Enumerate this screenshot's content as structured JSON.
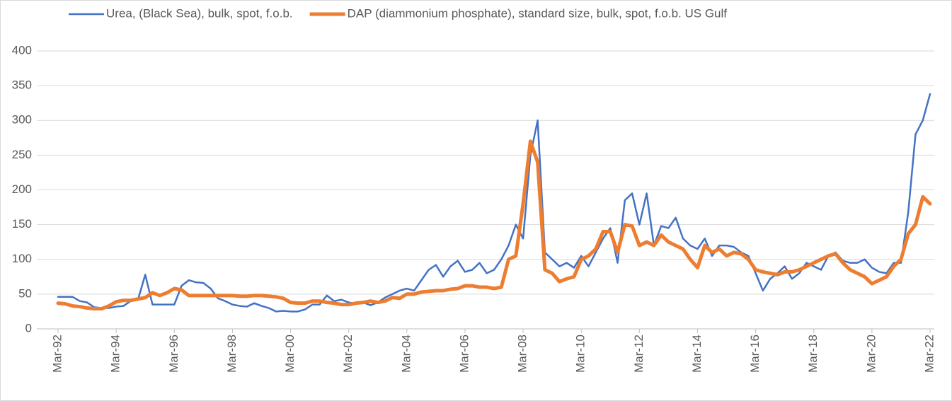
{
  "chart_data": {
    "type": "line",
    "categories": [
      "Mar-92",
      null,
      null,
      null,
      null,
      null,
      null,
      null,
      "Mar-94",
      null,
      null,
      null,
      null,
      null,
      null,
      null,
      "Mar-96",
      null,
      null,
      null,
      null,
      null,
      null,
      null,
      "Mar-98",
      null,
      null,
      null,
      null,
      null,
      null,
      null,
      "Mar-00",
      null,
      null,
      null,
      null,
      null,
      null,
      null,
      "Mar-02",
      null,
      null,
      null,
      null,
      null,
      null,
      null,
      "Mar-04",
      null,
      null,
      null,
      null,
      null,
      null,
      null,
      "Mar-06",
      null,
      null,
      null,
      null,
      null,
      null,
      null,
      "Mar-08",
      null,
      null,
      null,
      null,
      null,
      null,
      null,
      "Mar-10",
      null,
      null,
      null,
      null,
      null,
      null,
      null,
      "Mar-12",
      null,
      null,
      null,
      null,
      null,
      null,
      null,
      "Mar-14",
      null,
      null,
      null,
      null,
      null,
      null,
      null,
      "Mar-16",
      null,
      null,
      null,
      null,
      null,
      null,
      null,
      "Mar-18",
      null,
      null,
      null,
      null,
      null,
      null,
      null,
      "Mar-20",
      null,
      null,
      null,
      null,
      null,
      null,
      null,
      "Mar-22"
    ],
    "series": [
      {
        "name": "Urea, (Black Sea), bulk, spot, f.o.b.",
        "color": "#4472c4",
        "values": [
          46,
          46,
          46,
          40,
          38,
          31,
          30,
          30,
          32,
          33,
          40,
          42,
          78,
          35,
          35,
          35,
          35,
          62,
          70,
          67,
          66,
          58,
          44,
          40,
          35,
          33,
          32,
          37,
          33,
          30,
          25,
          26,
          25,
          25,
          28,
          35,
          35,
          48,
          40,
          42,
          38,
          36,
          38,
          34,
          38,
          45,
          50,
          55,
          58,
          55,
          70,
          85,
          92,
          75,
          90,
          98,
          82,
          85,
          95,
          80,
          85,
          100,
          120,
          150,
          130,
          250,
          300,
          110,
          100,
          90,
          95,
          88,
          105,
          90,
          110,
          130,
          145,
          95,
          185,
          195,
          150,
          195,
          120,
          148,
          145,
          160,
          130,
          120,
          115,
          130,
          105,
          120,
          120,
          118,
          110,
          105,
          80,
          55,
          72,
          80,
          90,
          72,
          80,
          95,
          90,
          85,
          105,
          110,
          98,
          95,
          95,
          100,
          88,
          82,
          80,
          95,
          95,
          168,
          280,
          300,
          338
        ]
      },
      {
        "name": "DAP (diammonium phosphate), standard size, bulk, spot, f.o.b. US Gulf",
        "color": "#ed7d31",
        "values": [
          37,
          36,
          33,
          32,
          30,
          29,
          29,
          33,
          39,
          41,
          41,
          43,
          45,
          52,
          48,
          52,
          58,
          56,
          48,
          48,
          48,
          48,
          48,
          48,
          48,
          47,
          47,
          48,
          48,
          47,
          46,
          44,
          38,
          37,
          37,
          40,
          40,
          38,
          37,
          35,
          35,
          37,
          38,
          40,
          38,
          40,
          45,
          44,
          50,
          50,
          53,
          54,
          55,
          55,
          57,
          58,
          62,
          62,
          60,
          60,
          58,
          60,
          100,
          105,
          180,
          270,
          240,
          85,
          80,
          68,
          72,
          75,
          100,
          105,
          115,
          140,
          140,
          110,
          150,
          148,
          120,
          125,
          120,
          135,
          125,
          120,
          115,
          100,
          88,
          120,
          110,
          115,
          105,
          110,
          108,
          100,
          85,
          82,
          80,
          78,
          82,
          82,
          85,
          90,
          95,
          100,
          105,
          108,
          95,
          85,
          80,
          75,
          65,
          70,
          75,
          90,
          100,
          137,
          150,
          190,
          180
        ]
      }
    ],
    "ylim": [
      0,
      400
    ],
    "yticks": [
      0,
      50,
      100,
      150,
      200,
      250,
      300,
      350,
      400
    ],
    "grid": true,
    "legend": "top"
  }
}
